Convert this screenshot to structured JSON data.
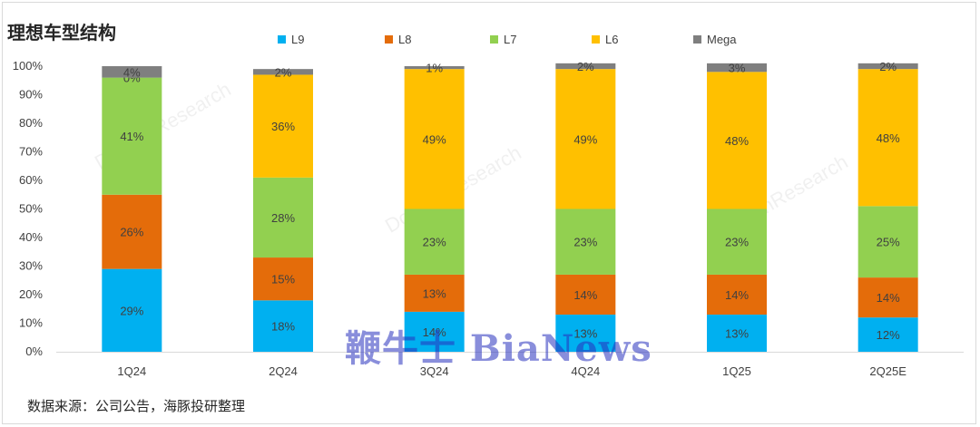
{
  "chart_data": {
    "type": "bar",
    "stacked": true,
    "title": "理想车型结构",
    "categories": [
      "1Q24",
      "2Q24",
      "3Q24",
      "4Q24",
      "1Q25",
      "2Q25E"
    ],
    "series": [
      {
        "name": "L9",
        "color": "#00b0f0",
        "values": [
          29,
          18,
          14,
          13,
          13,
          12
        ],
        "labels": [
          "29%",
          "18%",
          "14%",
          "13%",
          "13%",
          "12%"
        ]
      },
      {
        "name": "L8",
        "color": "#e46c0a",
        "values": [
          26,
          15,
          13,
          14,
          14,
          14
        ],
        "labels": [
          "26%",
          "15%",
          "13%",
          "14%",
          "14%",
          "14%"
        ]
      },
      {
        "name": "L7",
        "color": "#92d050",
        "values": [
          41,
          28,
          23,
          23,
          23,
          25
        ],
        "labels": [
          "41%",
          "28%",
          "23%",
          "23%",
          "23%",
          "25%"
        ]
      },
      {
        "name": "L6",
        "color": "#ffc000",
        "values": [
          0,
          36,
          49,
          49,
          48,
          48
        ],
        "labels": [
          "0%",
          "36%",
          "49%",
          "49%",
          "48%",
          "48%"
        ]
      },
      {
        "name": "Mega",
        "color": "#7f7f7f",
        "values": [
          4,
          2,
          1,
          2,
          3,
          2
        ],
        "labels": [
          "4%",
          "2%",
          "1%",
          "2%",
          "3%",
          "2%"
        ]
      }
    ],
    "yticks": [
      "0%",
      "10%",
      "20%",
      "30%",
      "40%",
      "50%",
      "60%",
      "70%",
      "80%",
      "90%",
      "100%"
    ],
    "ylim": [
      0,
      100
    ],
    "grid": false,
    "legend_position": "top"
  },
  "source_note": "数据来源：公司公告，海豚投研整理",
  "watermark_text": "鞭牛士 BiaNews",
  "background_watermark": "DolphinResearch"
}
